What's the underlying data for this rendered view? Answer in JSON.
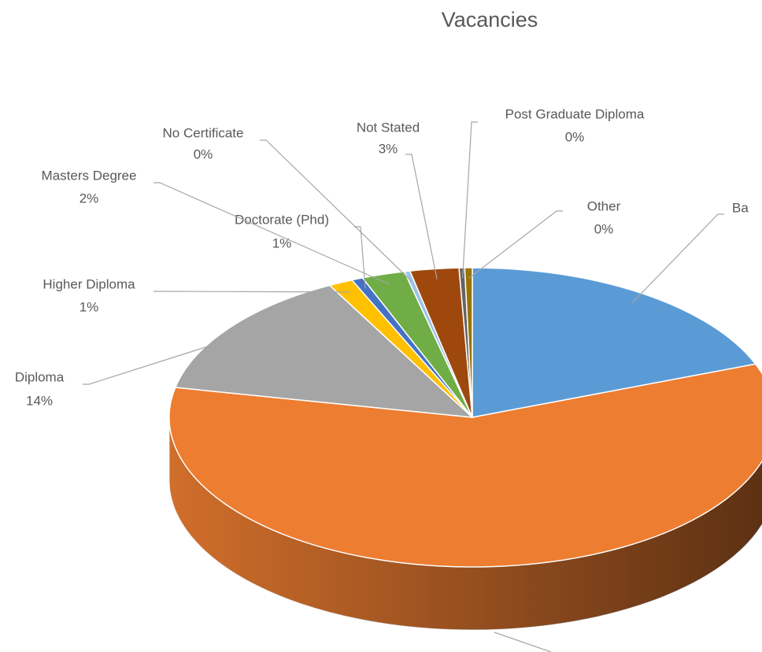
{
  "chart_data": {
    "type": "pie",
    "title": "Vacancies",
    "categories": [
      "Ba",
      null,
      "Diploma",
      "Higher Diploma",
      "Doctorate (Phd)",
      "Masters Degree",
      "No Certificate",
      "Not Stated",
      "Post Graduate Diploma",
      "Other"
    ],
    "values": [
      19.2,
      59.0,
      14.0,
      1.3,
      0.6,
      2.3,
      0.3,
      2.6,
      0.3,
      0.4
    ],
    "value_labels": [
      null,
      null,
      "14%",
      "1%",
      "1%",
      "2%",
      "0%",
      "3%",
      "0%",
      "0%"
    ],
    "colors": [
      "#5b9bd5",
      "#ed7d31",
      "#a5a5a5",
      "#ffc000",
      "#4472c4",
      "#70ad47",
      "#9dc3e6",
      "#9e480e",
      "#636363",
      "#997300"
    ]
  }
}
